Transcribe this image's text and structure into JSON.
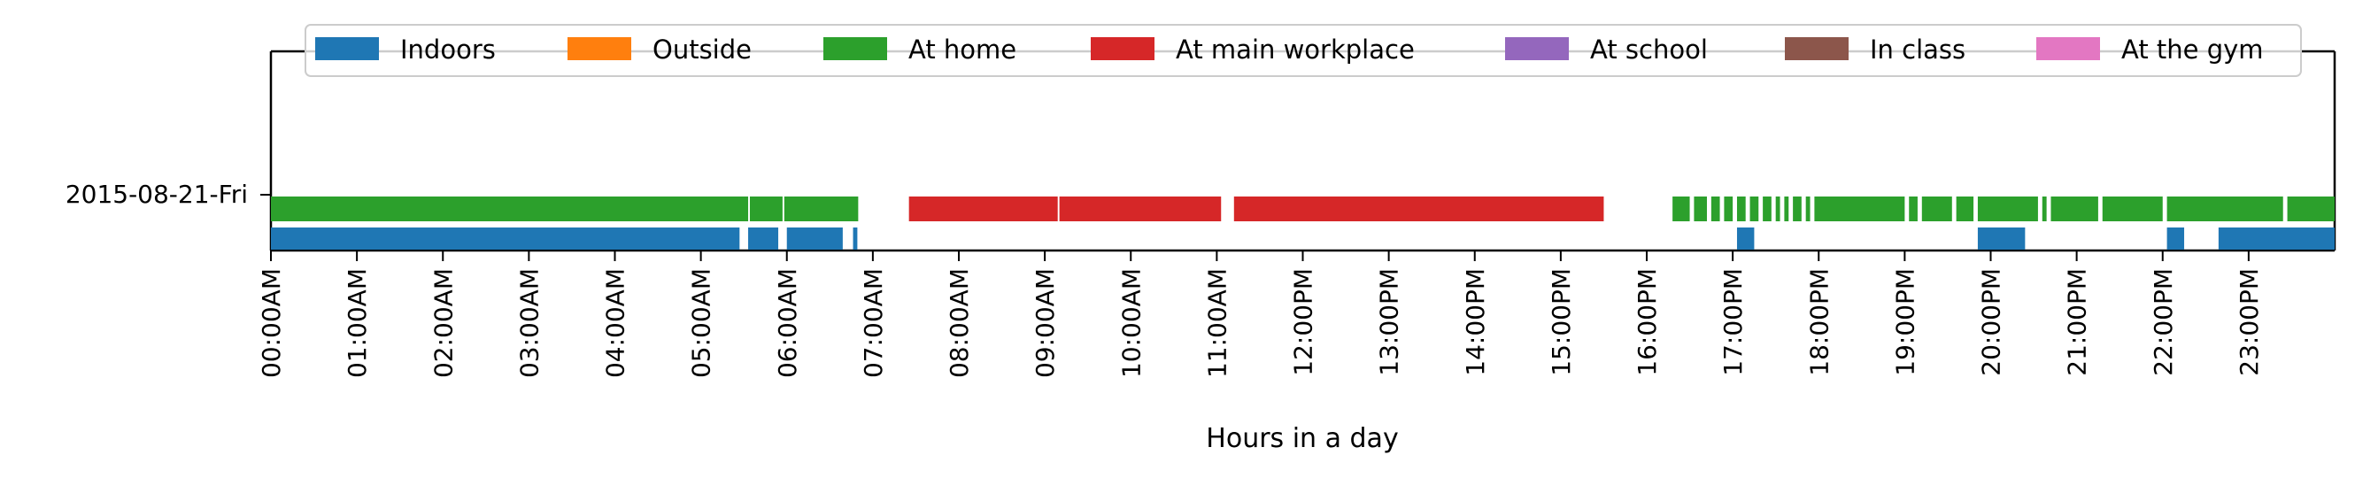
{
  "chart_data": {
    "type": "timeline",
    "xlabel": "Hours in a day",
    "xlim": [
      0,
      24
    ],
    "day_label": "2015-08-21-Fri",
    "tick_labels": [
      "00:00AM",
      "01:00AM",
      "02:00AM",
      "03:00AM",
      "04:00AM",
      "05:00AM",
      "06:00AM",
      "07:00AM",
      "08:00AM",
      "09:00AM",
      "10:00AM",
      "11:00AM",
      "12:00PM",
      "13:00PM",
      "14:00PM",
      "15:00PM",
      "16:00PM",
      "17:00PM",
      "18:00PM",
      "19:00PM",
      "20:00PM",
      "21:00PM",
      "22:00PM",
      "23:00PM"
    ],
    "legend_position": "top",
    "legend": [
      {
        "label": "Indoors",
        "color": "#1f77b4"
      },
      {
        "label": "Outside",
        "color": "#ff7f0e"
      },
      {
        "label": "At home",
        "color": "#2ca02c"
      },
      {
        "label": "At main workplace",
        "color": "#d62728"
      },
      {
        "label": "At school",
        "color": "#9467bd"
      },
      {
        "label": "In class",
        "color": "#8c564b"
      },
      {
        "label": "At the gym",
        "color": "#e377c2"
      }
    ],
    "series": [
      {
        "name": "Indoors",
        "color": "#1f77b4",
        "lane": "lower",
        "intervals": [
          [
            0.0,
            5.45
          ],
          [
            5.55,
            5.9
          ],
          [
            6.0,
            6.65
          ],
          [
            6.77,
            6.82
          ],
          [
            17.05,
            17.25
          ],
          [
            19.85,
            20.4
          ],
          [
            22.05,
            22.25
          ],
          [
            22.65,
            24.0
          ]
        ]
      },
      {
        "name": "At home",
        "color": "#2ca02c",
        "lane": "upper",
        "intervals": [
          [
            0.0,
            5.55
          ],
          [
            5.57,
            5.95
          ],
          [
            5.97,
            6.83
          ],
          [
            16.3,
            16.5
          ],
          [
            16.55,
            16.7
          ],
          [
            16.75,
            16.85
          ],
          [
            16.9,
            17.0
          ],
          [
            17.05,
            17.15
          ],
          [
            17.2,
            17.3
          ],
          [
            17.35,
            17.45
          ],
          [
            17.5,
            17.55
          ],
          [
            17.6,
            17.65
          ],
          [
            17.7,
            17.8
          ],
          [
            17.85,
            17.9
          ],
          [
            17.95,
            19.0
          ],
          [
            19.05,
            19.15
          ],
          [
            19.2,
            19.55
          ],
          [
            19.6,
            19.8
          ],
          [
            19.85,
            20.55
          ],
          [
            20.6,
            20.65
          ],
          [
            20.7,
            21.25
          ],
          [
            21.3,
            22.0
          ],
          [
            22.05,
            23.4
          ],
          [
            23.45,
            24.0
          ]
        ]
      },
      {
        "name": "At main workplace",
        "color": "#d62728",
        "lane": "upper",
        "intervals": [
          [
            7.42,
            9.15
          ],
          [
            9.17,
            11.05
          ],
          [
            11.2,
            15.5
          ]
        ]
      }
    ]
  }
}
